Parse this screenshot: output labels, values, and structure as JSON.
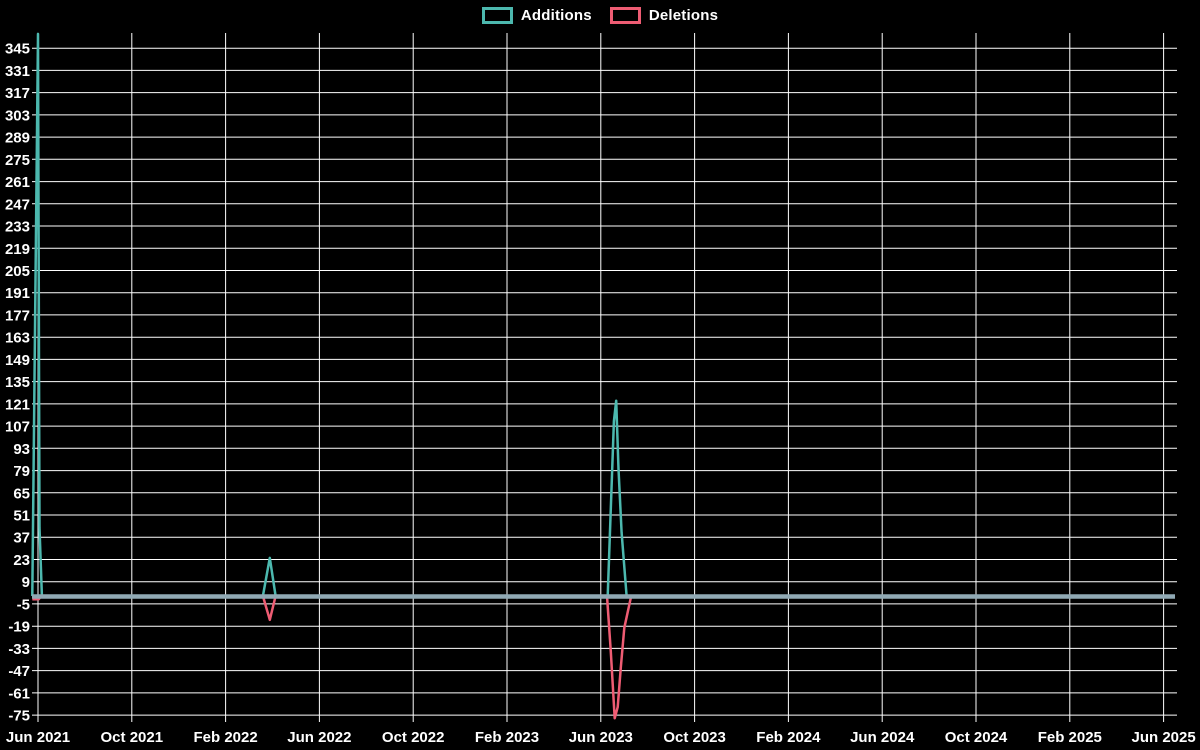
{
  "chart_data": {
    "type": "line",
    "title": "",
    "legend_position": "top-center",
    "background_color": "#000000",
    "grid": true,
    "grid_color": "#ffffff",
    "text_color": "#ffffff",
    "zero_line_color": "#90a9b4",
    "x_ticks": [
      "Jun 2021",
      "Oct 2021",
      "Feb 2022",
      "Jun 2022",
      "Oct 2022",
      "Feb 2023",
      "Jun 2023",
      "Oct 2023",
      "Feb 2024",
      "Jun 2024",
      "Oct 2024",
      "Feb 2025",
      "Jun 2025"
    ],
    "x_tick_interval_months": 4,
    "y_ticks": [
      345,
      331,
      317,
      303,
      289,
      275,
      261,
      247,
      233,
      219,
      205,
      191,
      177,
      163,
      149,
      135,
      121,
      107,
      93,
      79,
      65,
      51,
      37,
      23,
      9,
      -5,
      -19,
      -33,
      -47,
      -61,
      -75
    ],
    "y_range": [
      -77,
      355
    ],
    "x_range": [
      "May 2021",
      "Jun 2025"
    ],
    "series": [
      {
        "name": "Additions",
        "color": "#4cb8ae",
        "points": [
          [
            "2021-05-24",
            0
          ],
          [
            "2021-06-01",
            354
          ],
          [
            "2021-06-03",
            43
          ],
          [
            "2021-06-06",
            0
          ],
          [
            "2022-03-19",
            0
          ],
          [
            "2022-03-28",
            24
          ],
          [
            "2022-04-05",
            0
          ],
          [
            "2023-06-10",
            0
          ],
          [
            "2023-06-18",
            110
          ],
          [
            "2023-06-21",
            123
          ],
          [
            "2023-06-24",
            80
          ],
          [
            "2023-06-28",
            40
          ],
          [
            "2023-07-04",
            0
          ],
          [
            "2025-06-15",
            0
          ]
        ]
      },
      {
        "name": "Deletions",
        "color": "#ee5c73",
        "points": [
          [
            "2021-05-24",
            -2
          ],
          [
            "2021-06-02",
            -2
          ],
          [
            "2021-06-05",
            0
          ],
          [
            "2022-03-19",
            0
          ],
          [
            "2022-03-28",
            -15
          ],
          [
            "2022-04-05",
            0
          ],
          [
            "2023-06-09",
            0
          ],
          [
            "2023-06-14",
            -35
          ],
          [
            "2023-06-19",
            -77
          ],
          [
            "2023-06-23",
            -70
          ],
          [
            "2023-06-27",
            -45
          ],
          [
            "2023-07-01",
            -20
          ],
          [
            "2023-07-10",
            0
          ],
          [
            "2025-06-15",
            0
          ]
        ]
      }
    ]
  }
}
